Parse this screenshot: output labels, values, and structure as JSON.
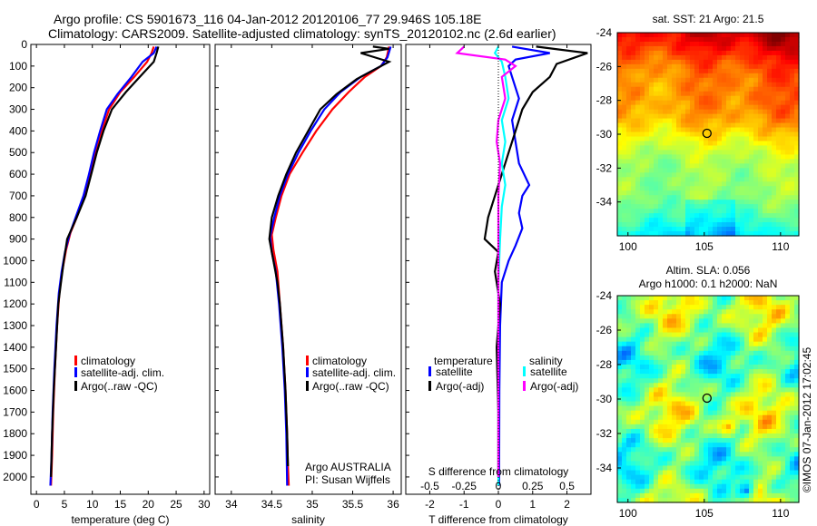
{
  "title_line1": "Argo profile: CS 5901673_116 04-Jan-2012 20120106_77 29.946S 105.18E",
  "title_line2": "Climatology: CARS2009. Satellite-adjusted climatology: synTS_20120102.nc (2.6d earlier)",
  "credit": "©IMOS 07-Jan-2012 17:02:45",
  "chart_data": [
    {
      "id": "temperature",
      "type": "line",
      "xlabel": "temperature (deg C)",
      "ylabel": "",
      "xlim": [
        -1,
        31
      ],
      "ylim": [
        2080,
        0
      ],
      "xticks": [
        0,
        5,
        10,
        15,
        20,
        25,
        30
      ],
      "yticks": [
        0,
        100,
        200,
        300,
        400,
        500,
        600,
        700,
        800,
        900,
        1000,
        1100,
        1200,
        1300,
        1400,
        1500,
        1600,
        1700,
        1800,
        1900,
        2000
      ],
      "legend": [
        "climatology",
        "satellite-adj. clim.",
        "Argo(..raw -QC)"
      ],
      "series": [
        {
          "name": "climatology",
          "color": "#ff0000",
          "points": [
            [
              21,
              10
            ],
            [
              20.6,
              40
            ],
            [
              19.8,
              80
            ],
            [
              17.5,
              150
            ],
            [
              15,
              220
            ],
            [
              13,
              300
            ],
            [
              11.7,
              400
            ],
            [
              10.6,
              500
            ],
            [
              9.6,
              600
            ],
            [
              8.6,
              700
            ],
            [
              7.2,
              800
            ],
            [
              6.1,
              870
            ],
            [
              5.3,
              950
            ],
            [
              4.6,
              1050
            ],
            [
              4.1,
              1150
            ],
            [
              3.7,
              1300
            ],
            [
              3.3,
              1500
            ],
            [
              3.0,
              1700
            ],
            [
              2.8,
              1900
            ],
            [
              2.6,
              2040
            ]
          ]
        },
        {
          "name": "satellite-adj. clim.",
          "color": "#0000ff",
          "points": [
            [
              21.5,
              10
            ],
            [
              21,
              40
            ],
            [
              19,
              80
            ],
            [
              17,
              150
            ],
            [
              14.5,
              230
            ],
            [
              12.6,
              300
            ],
            [
              11.4,
              400
            ],
            [
              10.3,
              500
            ],
            [
              9.4,
              600
            ],
            [
              8.4,
              700
            ],
            [
              7,
              800
            ],
            [
              5.9,
              880
            ],
            [
              5.1,
              960
            ],
            [
              4.5,
              1050
            ],
            [
              4.0,
              1150
            ],
            [
              3.6,
              1300
            ],
            [
              3.2,
              1500
            ],
            [
              2.9,
              1700
            ],
            [
              2.7,
              1900
            ],
            [
              2.5,
              2040
            ]
          ]
        },
        {
          "name": "Argo(..raw -QC)",
          "color": "#000000",
          "points": [
            [
              21.8,
              10
            ],
            [
              21.5,
              40
            ],
            [
              21,
              80
            ],
            [
              18.5,
              150
            ],
            [
              16,
              220
            ],
            [
              13.5,
              300
            ],
            [
              12,
              400
            ],
            [
              10.8,
              500
            ],
            [
              9.8,
              600
            ],
            [
              8.8,
              700
            ],
            [
              7.2,
              800
            ],
            [
              5.5,
              900
            ],
            [
              4.9,
              1000
            ],
            [
              4.4,
              1100
            ],
            [
              3.9,
              1200
            ],
            [
              3.5,
              1400
            ],
            [
              3.1,
              1600
            ],
            [
              2.8,
              1800
            ],
            [
              2.6,
              2000
            ]
          ]
        }
      ]
    },
    {
      "id": "salinity",
      "type": "line",
      "xlabel": "salinity",
      "ylabel": "",
      "xlim": [
        33.8,
        36.1
      ],
      "ylim": [
        2080,
        0
      ],
      "xticks": [
        34,
        34.5,
        35,
        35.5,
        36
      ],
      "xticklabels": [
        "34",
        "34.5",
        "35",
        "35.5",
        "36"
      ],
      "legend": [
        "climatology",
        "satellite-adj. clim.",
        "Argo(..raw -QC)"
      ],
      "annotation": [
        "Argo AUSTRALIA",
        "PI: Susan Wijffels"
      ],
      "series": [
        {
          "name": "climatology",
          "color": "#ff0000",
          "points": [
            [
              35.95,
              10
            ],
            [
              35.92,
              60
            ],
            [
              35.85,
              100
            ],
            [
              35.65,
              150
            ],
            [
              35.45,
              220
            ],
            [
              35.25,
              300
            ],
            [
              35.05,
              400
            ],
            [
              34.88,
              500
            ],
            [
              34.72,
              600
            ],
            [
              34.62,
              700
            ],
            [
              34.55,
              800
            ],
            [
              34.5,
              880
            ],
            [
              34.52,
              950
            ],
            [
              34.57,
              1050
            ],
            [
              34.6,
              1200
            ],
            [
              34.64,
              1400
            ],
            [
              34.67,
              1600
            ],
            [
              34.69,
              1800
            ],
            [
              34.7,
              1950
            ],
            [
              34.71,
              2040
            ]
          ]
        },
        {
          "name": "satellite-adj. clim.",
          "color": "#0000ff",
          "points": [
            [
              35.97,
              10
            ],
            [
              35.93,
              60
            ],
            [
              35.85,
              100
            ],
            [
              35.6,
              150
            ],
            [
              35.35,
              220
            ],
            [
              35.15,
              300
            ],
            [
              34.98,
              400
            ],
            [
              34.83,
              500
            ],
            [
              34.7,
              600
            ],
            [
              34.6,
              700
            ],
            [
              34.53,
              800
            ],
            [
              34.48,
              890
            ],
            [
              34.5,
              960
            ],
            [
              34.55,
              1050
            ],
            [
              34.59,
              1200
            ],
            [
              34.63,
              1400
            ],
            [
              34.66,
              1600
            ],
            [
              34.68,
              1800
            ],
            [
              34.69,
              2040
            ]
          ]
        },
        {
          "name": "Argo(..raw -QC)",
          "color": "#000000",
          "points": [
            [
              35.75,
              10
            ],
            [
              35.95,
              20
            ],
            [
              35.6,
              40
            ],
            [
              35.95,
              80
            ],
            [
              35.8,
              110
            ],
            [
              35.55,
              160
            ],
            [
              35.3,
              230
            ],
            [
              35.1,
              300
            ],
            [
              34.95,
              400
            ],
            [
              34.8,
              500
            ],
            [
              34.68,
              600
            ],
            [
              34.58,
              700
            ],
            [
              34.5,
              800
            ],
            [
              34.47,
              900
            ],
            [
              34.52,
              1000
            ],
            [
              34.57,
              1100
            ],
            [
              34.6,
              1200
            ],
            [
              34.64,
              1400
            ],
            [
              34.67,
              1600
            ],
            [
              34.69,
              1800
            ],
            [
              34.7,
              1950
            ]
          ]
        }
      ]
    },
    {
      "id": "difference",
      "type": "line",
      "xlabel": "T difference from climatology",
      "xlabel2": "S difference from climatology",
      "xlim": [
        -2.7,
        2.7
      ],
      "ylim": [
        2080,
        0
      ],
      "xticks": [
        -2,
        -1,
        0,
        1,
        2
      ],
      "x2ticks": [
        -0.5,
        -0.25,
        0,
        0.25,
        0.5
      ],
      "x2ticklabels": [
        "-0.5",
        "-0.25",
        "0",
        "0.25",
        "0.5"
      ],
      "legend_headers": [
        "temperature",
        "salinity"
      ],
      "legend": [
        "satellite",
        "Argo(-adj)",
        "satellite",
        "Argo(-adj)"
      ],
      "series": [
        {
          "name": "satellite",
          "group": "temperature",
          "color": "#0000ff",
          "points": [
            [
              0.4,
              10
            ],
            [
              1.5,
              40
            ],
            [
              0.5,
              70
            ],
            [
              0.3,
              100
            ],
            [
              0.4,
              150
            ],
            [
              0.6,
              250
            ],
            [
              0.4,
              350
            ],
            [
              0.5,
              450
            ],
            [
              0.6,
              550
            ],
            [
              0.9,
              650
            ],
            [
              0.7,
              700
            ],
            [
              0.6,
              780
            ],
            [
              0.7,
              850
            ],
            [
              0.5,
              930
            ],
            [
              0.3,
              1000
            ],
            [
              0.1,
              1100
            ],
            [
              0.05,
              1300
            ],
            [
              0.03,
              1600
            ],
            [
              0.02,
              2040
            ]
          ]
        },
        {
          "name": "Argo(-adj)",
          "group": "temperature",
          "color": "#000000",
          "points": [
            [
              1.1,
              10
            ],
            [
              2.6,
              40
            ],
            [
              1.7,
              90
            ],
            [
              1.5,
              150
            ],
            [
              1.0,
              220
            ],
            [
              0.7,
              300
            ],
            [
              0.5,
              400
            ],
            [
              0.3,
              500
            ],
            [
              0.1,
              600
            ],
            [
              -0.1,
              700
            ],
            [
              -0.3,
              800
            ],
            [
              -0.4,
              900
            ],
            [
              0,
              960
            ],
            [
              -0.1,
              1050
            ],
            [
              0.05,
              1200
            ],
            [
              -0.05,
              1400
            ],
            [
              0,
              1700
            ],
            [
              0,
              2000
            ]
          ]
        },
        {
          "name": "satellite",
          "group": "salinity",
          "color": "#00ffff",
          "points": [
            [
              0,
              10
            ],
            [
              -0.1,
              40
            ],
            [
              0.1,
              80
            ],
            [
              0.2,
              150
            ],
            [
              0.3,
              250
            ],
            [
              0.1,
              350
            ],
            [
              0.2,
              450
            ],
            [
              0.1,
              550
            ],
            [
              0.2,
              650
            ],
            [
              0.1,
              750
            ],
            [
              0.05,
              900
            ],
            [
              0,
              1100
            ],
            [
              0,
              1400
            ],
            [
              0,
              1700
            ],
            [
              0,
              2040
            ]
          ]
        },
        {
          "name": "Argo(-adj)",
          "group": "salinity",
          "color": "#ff00ff",
          "points": [
            [
              -1,
              10
            ],
            [
              -1.2,
              40
            ],
            [
              0.2,
              70
            ],
            [
              0.5,
              100
            ],
            [
              0.1,
              150
            ],
            [
              0.2,
              250
            ],
            [
              0,
              350
            ],
            [
              -0.05,
              450
            ],
            [
              0.05,
              550
            ],
            [
              0,
              700
            ],
            [
              0,
              900
            ],
            [
              0,
              1200
            ],
            [
              0,
              1600
            ],
            [
              0,
              2000
            ]
          ]
        }
      ]
    },
    {
      "id": "sst",
      "type": "heatmap",
      "title": "sat. SST: 21  Argo: 21.5",
      "xlim": [
        99.3,
        111.2
      ],
      "ylim": [
        -36,
        -24
      ],
      "xticks": [
        100,
        105,
        110
      ],
      "yticks": [
        -24,
        -26,
        -28,
        -30,
        -32,
        -34
      ],
      "marker": [
        105.18,
        -29.946
      ]
    },
    {
      "id": "sla",
      "type": "heatmap",
      "title": "Altim. SLA: 0.056",
      "subtitle": "Argo h1000: 0.1 h2000: NaN",
      "xlim": [
        99.3,
        111.2
      ],
      "ylim": [
        -36,
        -24
      ],
      "xticks": [
        100,
        105,
        110
      ],
      "yticks": [
        -24,
        -26,
        -28,
        -30,
        -32,
        -34
      ],
      "marker": [
        105.18,
        -29.946
      ]
    }
  ]
}
